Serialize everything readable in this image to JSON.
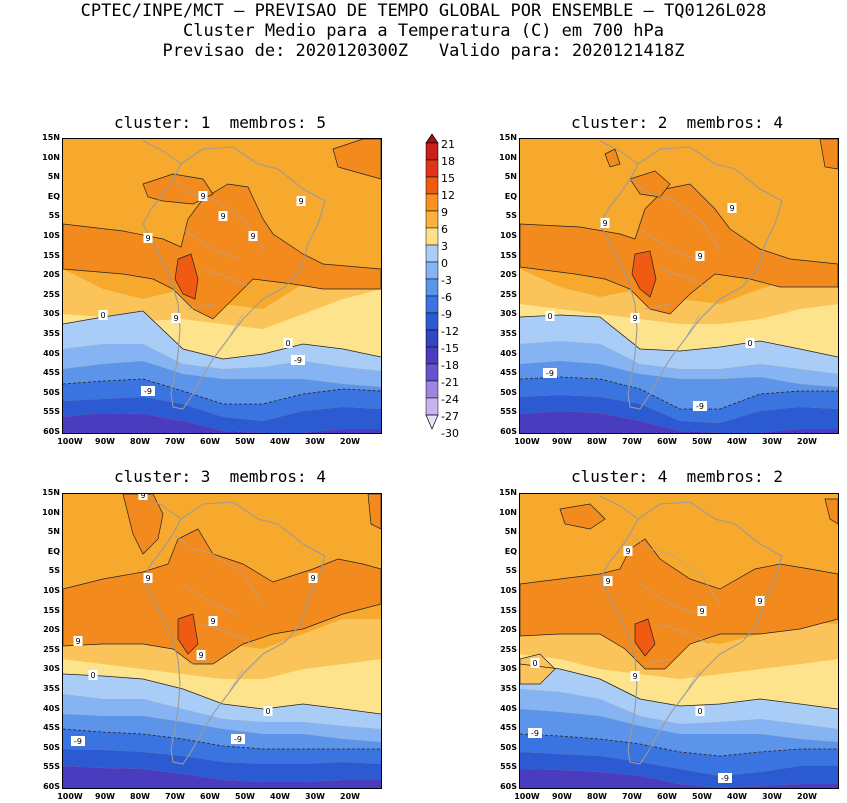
{
  "header": {
    "line1": "CPTEC/INPE/MCT – PREVISAO DE TEMPO GLOBAL POR ENSEMBLE – TQ0126L028",
    "line2": "Cluster Medio para a Temperatura (C) em 700 hPa",
    "line3": "Previsao de: 2020120300Z   Valido para: 2020121418Z"
  },
  "panels": [
    {
      "title": "cluster: 1  membros: 5"
    },
    {
      "title": "cluster: 2  membros: 4"
    },
    {
      "title": "cluster: 3  membros: 4"
    },
    {
      "title": "cluster: 4  membros: 2"
    }
  ],
  "lat_labels": [
    "15N",
    "10N",
    "5N",
    "EQ",
    "5S",
    "10S",
    "15S",
    "20S",
    "25S",
    "30S",
    "35S",
    "40S",
    "45S",
    "50S",
    "55S",
    "60S"
  ],
  "lon_labels": [
    "100W",
    "90W",
    "80W",
    "70W",
    "60W",
    "50W",
    "40W",
    "30W",
    "20W"
  ],
  "colorbar": {
    "levels": [
      "21",
      "18",
      "15",
      "12",
      "9",
      "6",
      "3",
      "0",
      "-3",
      "-6",
      "-9",
      "-12",
      "-15",
      "-18",
      "-21",
      "-24",
      "-27",
      "-30"
    ],
    "colors": [
      "#a50f15",
      "#c8201c",
      "#e2341a",
      "#f05a12",
      "#f8901e",
      "#fab23c",
      "#fde28a",
      "#aacdf7",
      "#86b4f2",
      "#5c94ea",
      "#3a74e0",
      "#2c5ad2",
      "#3345c0",
      "#4a3cbf",
      "#6a52cf",
      "#9d86e2",
      "#c5b6ef",
      "#e8e2f7"
    ]
  },
  "contour_labels": {
    "p1": [
      "9",
      "9",
      "9",
      "9",
      "9",
      "9",
      "0",
      "0",
      "-9",
      "-9"
    ],
    "p2": [
      "9",
      "9",
      "9",
      "0",
      "0",
      "-9",
      "-9"
    ],
    "p3": [
      "9",
      "9",
      "9",
      "9",
      "9",
      "9",
      "0",
      "0",
      "-9",
      "-9"
    ],
    "p4": [
      "9",
      "9",
      "9",
      "9",
      "9",
      "0",
      "0",
      "-9",
      "-9"
    ]
  }
}
